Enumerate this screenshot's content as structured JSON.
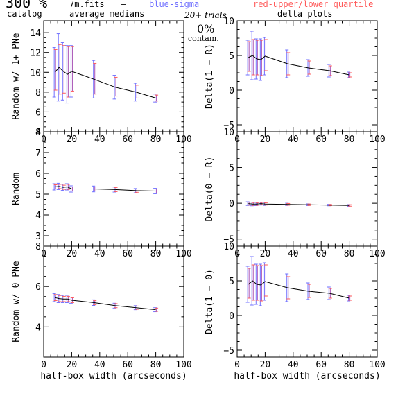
{
  "header": {
    "catalog_pct": "300 %",
    "catalog_label": "catalog",
    "filename": "7m.fits",
    "dash": "—",
    "blue_label": "blue-sigma",
    "red_label": "red-upper/lower quartile",
    "medians_label": "average medians",
    "trials_label": "20+ trials",
    "contam_pct": "0%",
    "contam_label": "contam.",
    "delta_label": "delta plots"
  },
  "colors": {
    "line": "#000000",
    "blue": "#6f6fff",
    "red": "#ff5a5a",
    "purple": "#a64fb4"
  },
  "chart_data": [
    {
      "type": "line",
      "ylabel": "Random w/ 1+ PNe",
      "xlabel": "",
      "xlim": [
        0,
        100
      ],
      "ylim": [
        4,
        15.2
      ],
      "yticks": [
        4,
        6,
        8,
        10,
        12,
        14
      ],
      "x": [
        8,
        11,
        14,
        17,
        20,
        36,
        51,
        66,
        80
      ],
      "y": [
        10.0,
        10.5,
        10.1,
        9.8,
        10.1,
        9.3,
        8.5,
        8.0,
        7.4
      ],
      "sigma": [
        2.5,
        3.4,
        2.9,
        2.9,
        2.6,
        1.9,
        1.2,
        0.9,
        0.4
      ],
      "quartile_low": [
        1.8,
        2.7,
        2.2,
        2.3,
        2.0,
        1.5,
        0.9,
        0.6,
        0.3
      ],
      "quartile_high": [
        2.3,
        2.3,
        2.6,
        2.8,
        2.5,
        1.6,
        1.0,
        0.7,
        0.3
      ]
    },
    {
      "type": "line",
      "ylabel": "Delta(1 − R)",
      "xlabel": "",
      "xlim": [
        0,
        100
      ],
      "ylim": [
        -6,
        10
      ],
      "yticks": [
        -5,
        0,
        5,
        10
      ],
      "x": [
        8,
        11,
        14,
        17,
        20,
        36,
        51,
        66,
        80
      ],
      "y": [
        4.7,
        5.0,
        4.5,
        4.4,
        4.9,
        3.8,
        3.2,
        2.8,
        2.2
      ],
      "sigma": [
        2.5,
        3.5,
        2.9,
        3.0,
        2.7,
        2.0,
        1.2,
        0.9,
        0.4
      ],
      "quartile_low": [
        2.0,
        2.8,
        2.3,
        2.3,
        2.1,
        1.6,
        0.9,
        0.7,
        0.3
      ],
      "quartile_high": [
        2.3,
        2.3,
        2.7,
        2.8,
        2.4,
        1.6,
        1.0,
        0.7,
        0.3
      ]
    },
    {
      "type": "line",
      "ylabel": "Random",
      "xlabel": "",
      "xlim": [
        0,
        100
      ],
      "ylim": [
        2.5,
        8
      ],
      "yticks": [
        3,
        4,
        5,
        6,
        7,
        8
      ],
      "x": [
        8,
        11,
        14,
        17,
        20,
        36,
        51,
        66,
        80
      ],
      "y": [
        5.35,
        5.37,
        5.33,
        5.35,
        5.25,
        5.25,
        5.22,
        5.17,
        5.15
      ],
      "sigma": [
        0.15,
        0.15,
        0.15,
        0.15,
        0.15,
        0.14,
        0.12,
        0.1,
        0.13
      ],
      "quartile_low": [
        0.1,
        0.1,
        0.1,
        0.12,
        0.1,
        0.1,
        0.1,
        0.08,
        0.1
      ],
      "quartile_high": [
        0.1,
        0.1,
        0.1,
        0.12,
        0.1,
        0.1,
        0.1,
        0.08,
        0.1
      ]
    },
    {
      "type": "line",
      "ylabel": "Delta(0 − R)",
      "xlabel": "",
      "xlim": [
        0,
        100
      ],
      "ylim": [
        -6,
        10
      ],
      "yticks": [
        -5,
        0,
        5,
        10
      ],
      "x": [
        8,
        11,
        14,
        17,
        20,
        36,
        51,
        66,
        80
      ],
      "y": [
        -0.05,
        -0.1,
        -0.1,
        -0.05,
        -0.1,
        -0.15,
        -0.2,
        -0.25,
        -0.3
      ],
      "sigma": [
        0.25,
        0.25,
        0.22,
        0.2,
        0.2,
        0.15,
        0.12,
        0.1,
        0.12
      ],
      "quartile_low": [
        0.2,
        0.2,
        0.18,
        0.15,
        0.15,
        0.12,
        0.1,
        0.08,
        0.1
      ],
      "quartile_high": [
        0.2,
        0.2,
        0.18,
        0.15,
        0.15,
        0.12,
        0.1,
        0.08,
        0.1
      ]
    },
    {
      "type": "line",
      "ylabel": "Random w/ 0 PNe",
      "xlabel": "half-box width (arcseconds)",
      "xlim": [
        0,
        100
      ],
      "ylim": [
        2.5,
        8
      ],
      "yticks": [
        4,
        6,
        8
      ],
      "x": [
        8,
        11,
        14,
        17,
        20,
        36,
        51,
        66,
        80
      ],
      "y": [
        5.45,
        5.4,
        5.38,
        5.38,
        5.32,
        5.2,
        5.05,
        4.95,
        4.85
      ],
      "sigma": [
        0.2,
        0.2,
        0.18,
        0.18,
        0.15,
        0.14,
        0.12,
        0.1,
        0.1
      ],
      "quartile_low": [
        0.15,
        0.15,
        0.13,
        0.13,
        0.12,
        0.1,
        0.1,
        0.08,
        0.08
      ],
      "quartile_high": [
        0.15,
        0.15,
        0.13,
        0.13,
        0.12,
        0.1,
        0.1,
        0.08,
        0.08
      ]
    },
    {
      "type": "line",
      "ylabel": "Delta(1 − 0)",
      "xlabel": "half-box width (arcseconds)",
      "xlim": [
        0,
        100
      ],
      "ylim": [
        -6,
        10
      ],
      "yticks": [
        -5,
        0,
        5,
        10
      ],
      "x": [
        8,
        11,
        14,
        17,
        20,
        36,
        51,
        66,
        80
      ],
      "y": [
        4.5,
        5.0,
        4.5,
        4.4,
        4.9,
        4.0,
        3.5,
        3.2,
        2.5
      ],
      "sigma": [
        2.6,
        3.5,
        2.9,
        3.0,
        2.7,
        2.0,
        1.2,
        0.9,
        0.4
      ],
      "quartile_low": [
        2.0,
        2.8,
        2.3,
        2.3,
        2.1,
        1.6,
        0.9,
        0.7,
        0.3
      ],
      "quartile_high": [
        2.3,
        2.3,
        2.7,
        2.8,
        2.4,
        1.6,
        1.0,
        0.7,
        0.3
      ]
    }
  ],
  "xticks": [
    0,
    20,
    40,
    60,
    80,
    100
  ]
}
